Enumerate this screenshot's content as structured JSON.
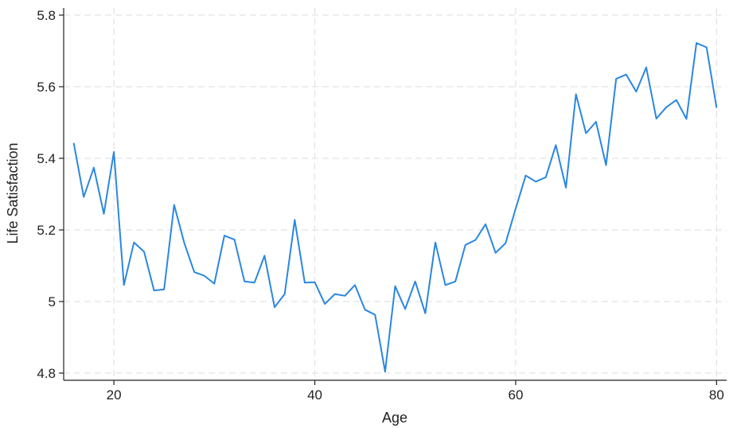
{
  "chart_data": {
    "type": "line",
    "title": "",
    "xlabel": "Age",
    "ylabel": "Life Satisfaction",
    "xlim": [
      15,
      81
    ],
    "ylim": [
      4.78,
      5.82
    ],
    "xticks": [
      20,
      40,
      60,
      80
    ],
    "yticks": [
      4.8,
      5,
      5.2,
      5.4,
      5.6,
      5.8
    ],
    "ytick_labels": [
      "4.8",
      "5",
      "5.2",
      "5.4",
      "5.6",
      "5.8"
    ],
    "grid": true,
    "line_color": "#2a87e0",
    "x": [
      16,
      17,
      18,
      19,
      20,
      21,
      22,
      23,
      24,
      25,
      26,
      27,
      28,
      29,
      30,
      31,
      32,
      33,
      34,
      35,
      36,
      37,
      38,
      39,
      40,
      41,
      42,
      43,
      44,
      45,
      46,
      47,
      48,
      49,
      50,
      51,
      52,
      53,
      54,
      55,
      56,
      57,
      58,
      59,
      60,
      61,
      62,
      63,
      64,
      65,
      66,
      67,
      68,
      69,
      70,
      71,
      72,
      73,
      74,
      75,
      76,
      77,
      78,
      79,
      80
    ],
    "values": [
      5.443,
      5.292,
      5.374,
      5.245,
      5.418,
      5.046,
      5.165,
      5.139,
      5.031,
      5.034,
      5.27,
      5.164,
      5.082,
      5.072,
      5.05,
      5.184,
      5.173,
      5.056,
      5.053,
      5.128,
      4.984,
      5.021,
      5.228,
      5.053,
      5.054,
      4.993,
      5.021,
      5.016,
      5.046,
      4.977,
      4.963,
      4.804,
      5.043,
      4.979,
      5.056,
      4.967,
      5.165,
      5.046,
      5.056,
      5.158,
      5.172,
      5.216,
      5.136,
      5.163,
      5.26,
      5.352,
      5.335,
      5.347,
      5.437,
      5.318,
      5.579,
      5.47,
      5.502,
      5.381,
      5.622,
      5.634,
      5.586,
      5.654,
      5.511,
      5.543,
      5.563,
      5.51,
      5.722,
      5.71,
      5.541
    ]
  }
}
